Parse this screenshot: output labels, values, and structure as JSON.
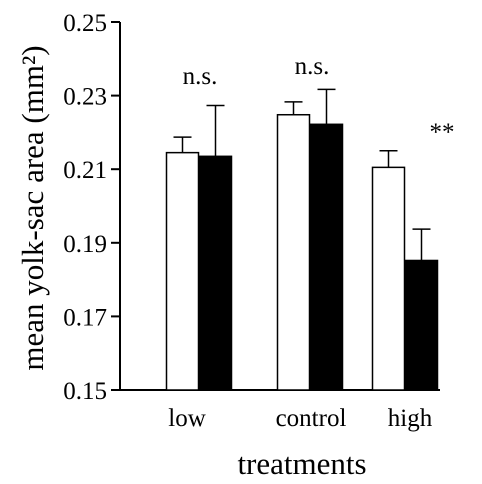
{
  "chart_data": {
    "type": "bar",
    "title": "",
    "xlabel": "treatments",
    "ylabel": "mean yolk-sac area (mm²)",
    "ylim": [
      0.15,
      0.25
    ],
    "yticks": [
      0.15,
      0.17,
      0.19,
      0.21,
      0.23,
      0.25
    ],
    "ytick_labels": [
      "0.15",
      "0.17",
      "0.19",
      "0.21",
      "0.23",
      "0.25"
    ],
    "categories": [
      "low",
      "control",
      "high"
    ],
    "series": [
      {
        "fill": "#ffffff",
        "values": [
          0.2145,
          0.2248,
          0.2105
        ],
        "errors": [
          0.0042,
          0.0035,
          0.0045
        ]
      },
      {
        "fill": "#000000",
        "values": [
          0.2135,
          0.2222,
          0.1852
        ],
        "errors": [
          0.0138,
          0.0095,
          0.0085
        ]
      }
    ],
    "annotations": [
      "n.s.",
      "n.s.",
      "**"
    ],
    "grid": false,
    "legend": "none"
  }
}
